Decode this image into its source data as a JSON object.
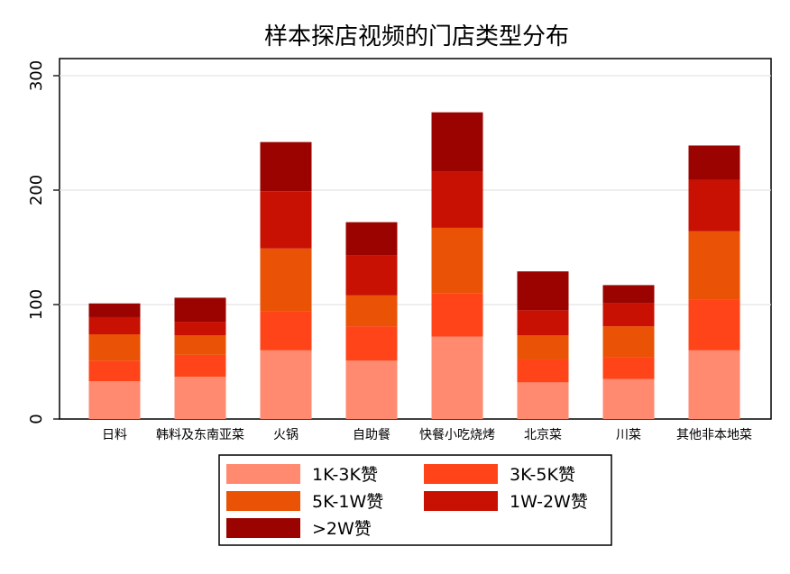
{
  "chart_data": {
    "type": "bar",
    "stacked": true,
    "title": "样本探店视频的门店类型分布",
    "xlabel": "",
    "ylabel": "",
    "ylim": [
      0,
      300
    ],
    "yticks": [
      0,
      100,
      200,
      300
    ],
    "grid": true,
    "legend_position": "bottom",
    "categories": [
      "日料",
      "韩料及东南亚菜",
      "火锅",
      "自助餐",
      "快餐小吃烧烤",
      "北京菜",
      "川菜",
      "其他非本地菜"
    ],
    "series": [
      {
        "name": "1K-3K赞",
        "color": "#ff8a70",
        "values": [
          33,
          37,
          60,
          51,
          72,
          32,
          35,
          60
        ]
      },
      {
        "name": "3K-5K赞",
        "color": "#ff4419",
        "values": [
          18,
          19,
          34,
          30,
          38,
          20,
          19,
          44
        ]
      },
      {
        "name": "5K-1W赞",
        "color": "#ea5205",
        "values": [
          23,
          17,
          55,
          27,
          57,
          21,
          27,
          60
        ]
      },
      {
        "name": "1W-2W赞",
        "color": "#c81003",
        "values": [
          15,
          12,
          50,
          35,
          49,
          22,
          20,
          45
        ]
      },
      {
        "name": ">2W赞",
        "color": "#9a0300",
        "values": [
          12,
          21,
          43,
          29,
          52,
          34,
          16,
          30
        ]
      }
    ]
  }
}
